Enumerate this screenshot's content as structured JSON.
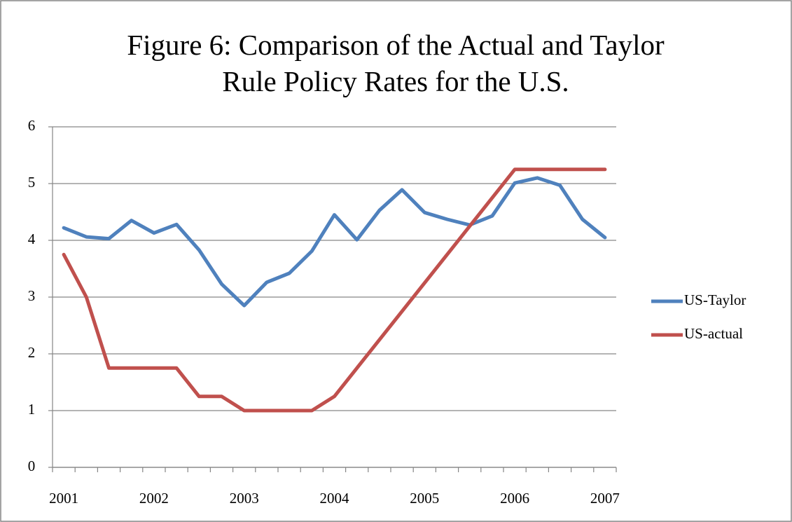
{
  "chart_data": {
    "type": "line",
    "title": "Figure 6: Comparison of the Actual and Taylor Rule Policy Rates for the U.S.",
    "categories": [
      "2001",
      null,
      null,
      null,
      "2002",
      null,
      null,
      null,
      "2003",
      null,
      null,
      null,
      "2004",
      null,
      null,
      null,
      "2005",
      null,
      null,
      null,
      "2006",
      null,
      null,
      null,
      "2007"
    ],
    "series": [
      {
        "name": "US-Taylor",
        "color": "#4f81bd",
        "values": [
          4.22,
          4.06,
          4.03,
          4.35,
          4.13,
          4.28,
          3.83,
          3.23,
          2.85,
          3.26,
          3.42,
          3.81,
          4.45,
          4.01,
          4.53,
          4.89,
          4.49,
          4.37,
          4.27,
          4.43,
          5.01,
          5.1,
          4.97,
          4.37,
          4.05
        ]
      },
      {
        "name": "US-actual",
        "color": "#c0504d",
        "values": [
          3.75,
          3.0,
          1.75,
          1.75,
          1.75,
          1.75,
          1.25,
          1.25,
          1.0,
          1.0,
          1.0,
          1.0,
          1.25,
          1.75,
          2.25,
          2.75,
          3.25,
          3.75,
          4.25,
          4.75,
          5.25,
          5.25,
          5.25,
          5.25,
          5.25
        ]
      }
    ],
    "ylim": [
      0,
      6
    ],
    "yticks": [
      0,
      1,
      2,
      3,
      4,
      5,
      6
    ],
    "grid": true,
    "legend": "right"
  }
}
